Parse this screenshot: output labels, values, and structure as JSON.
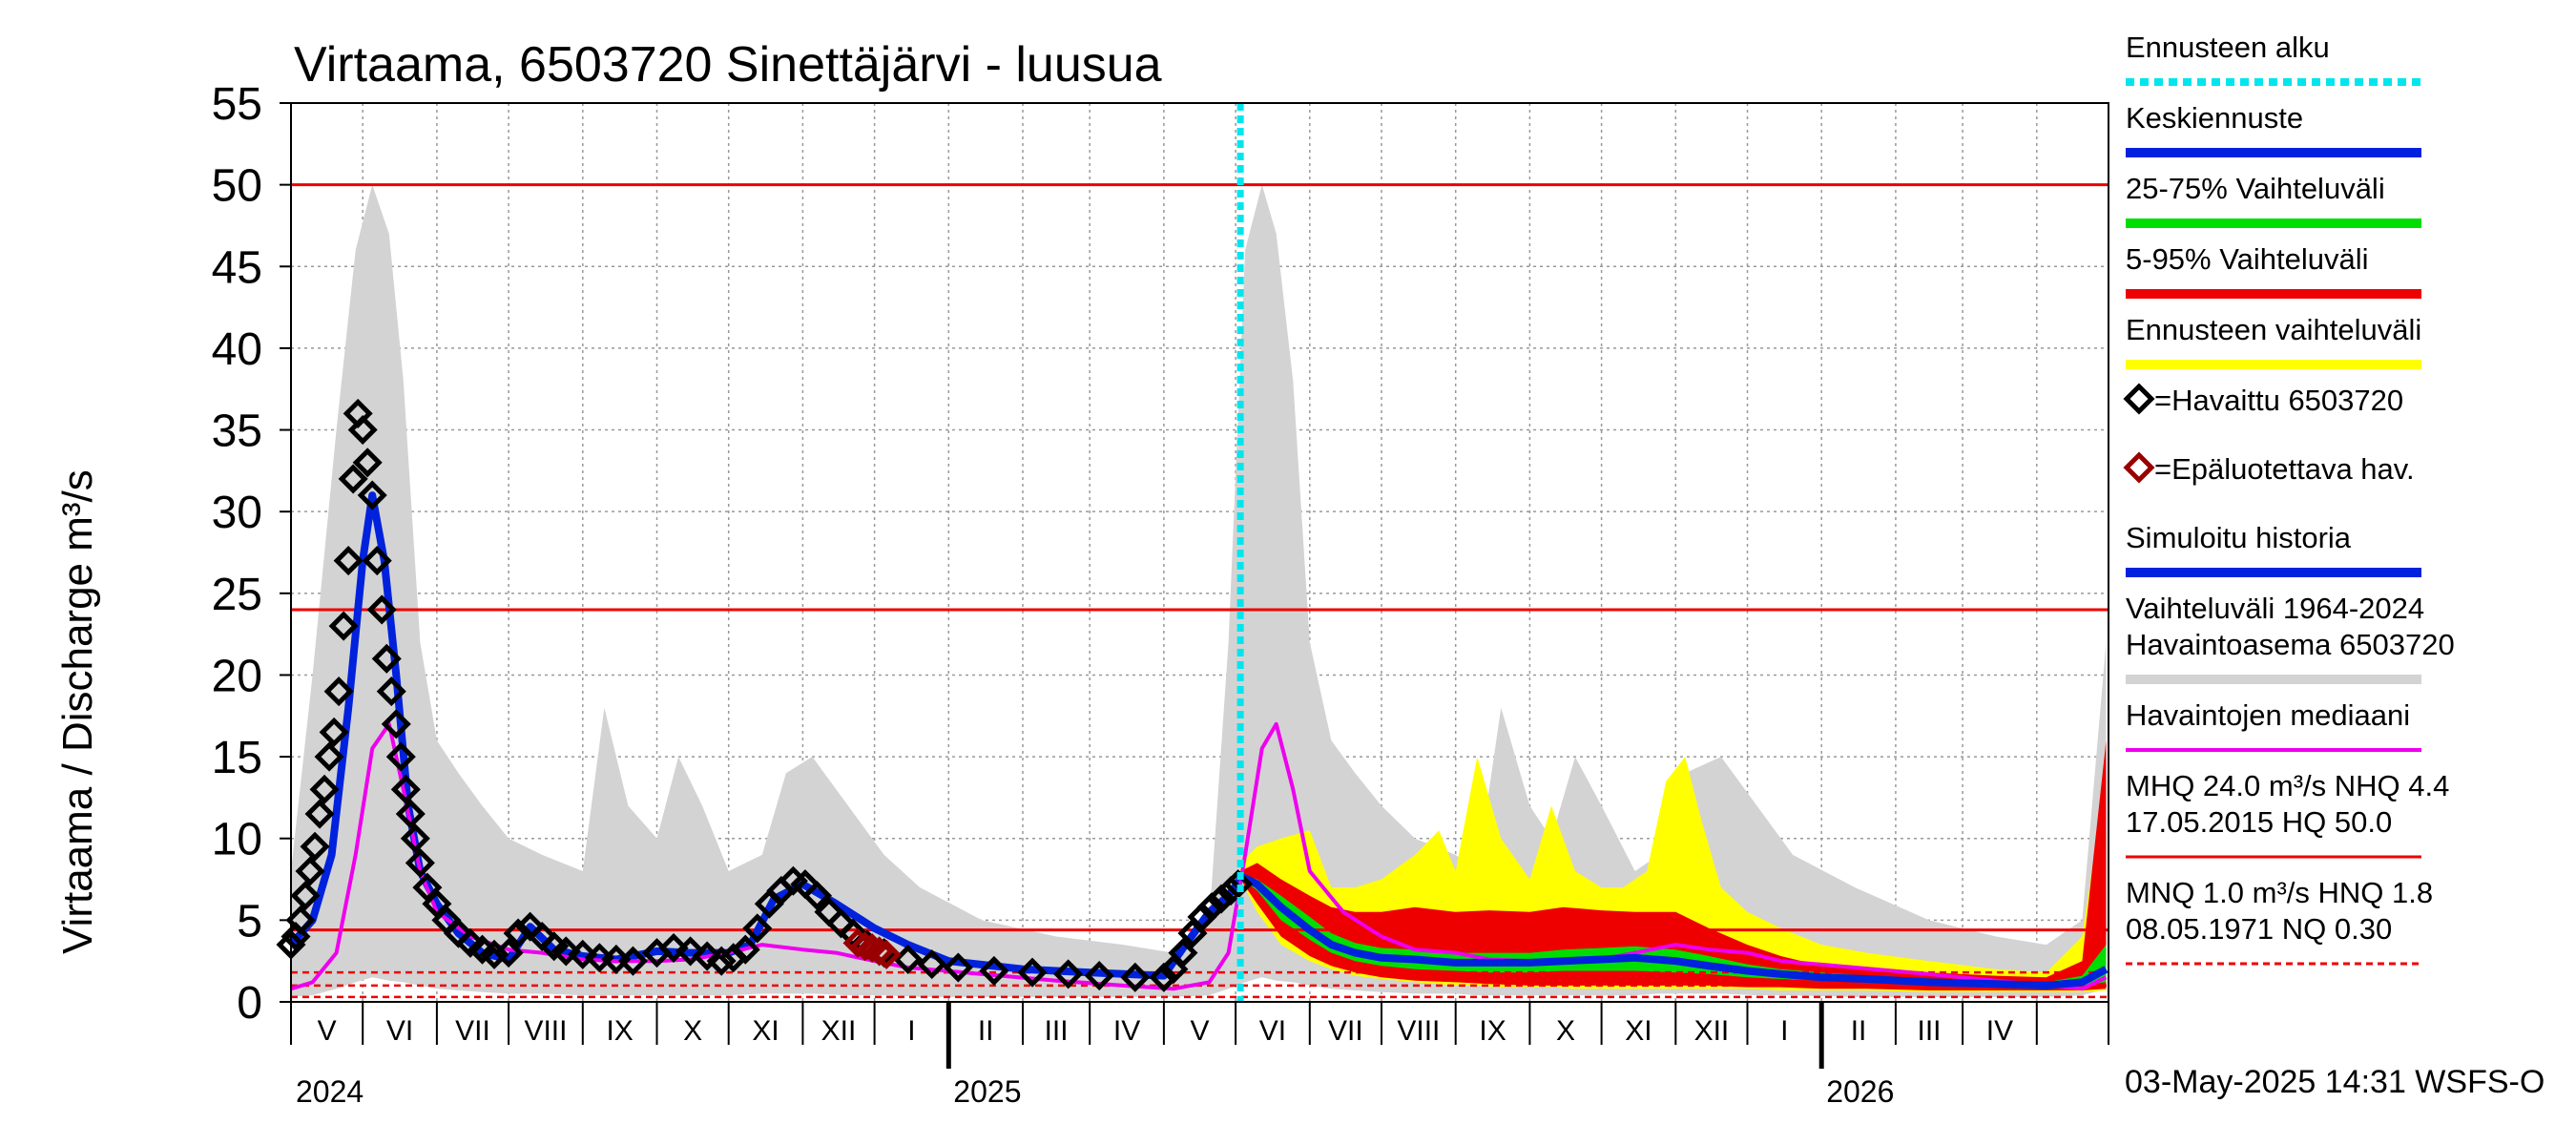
{
  "chart_data": {
    "type": "area",
    "title": "Virtaama, 6503720 Sinettäjärvi - luusua",
    "ylabel": "Virtaama / Discharge    m³/s",
    "ylim": [
      0,
      55
    ],
    "yticks": [
      0,
      5,
      10,
      15,
      20,
      25,
      30,
      35,
      40,
      45,
      50,
      55
    ],
    "xlim": [
      "2024-04-01",
      "2026-05-01"
    ],
    "month_labels": [
      "V",
      "VI",
      "VII",
      "VIII",
      "IX",
      "X",
      "XI",
      "XII",
      "I",
      "II",
      "III",
      "IV",
      "V",
      "VI",
      "VII",
      "VIII",
      "IX",
      "X",
      "XI",
      "XII",
      "I",
      "II",
      "III",
      "IV"
    ],
    "year_labels": [
      {
        "date": "2024-04-01",
        "label": "2024"
      },
      {
        "date": "2025-01-01",
        "label": "2025"
      },
      {
        "date": "2026-01-01",
        "label": "2026"
      }
    ],
    "forecast_start": "2025-05-03",
    "reference_lines": [
      {
        "name": "HQ",
        "value": 50.0,
        "style": "solid"
      },
      {
        "name": "MHQ",
        "value": 24.0,
        "style": "solid"
      },
      {
        "name": "NHQ",
        "value": 4.4,
        "style": "solid"
      },
      {
        "name": "HNQ",
        "value": 1.8,
        "style": "dashed"
      },
      {
        "name": "MNQ",
        "value": 1.0,
        "style": "dashed"
      },
      {
        "name": "NQ",
        "value": 0.3,
        "style": "dashed"
      }
    ],
    "legend": {
      "placement": "right",
      "items": [
        {
          "label": "Ennusteen alku",
          "color": "#00e5ee",
          "kind": "dotted-line"
        },
        {
          "label": "Keskiennuste",
          "color": "#0022dd",
          "kind": "line"
        },
        {
          "label": "25-75% Vaihteluväli",
          "color": "#00dd00",
          "kind": "line"
        },
        {
          "label": "5-95% Vaihteluväli",
          "color": "#ee0000",
          "kind": "line"
        },
        {
          "label": "Ennusteen vaihteluväli",
          "color": "#ffff00",
          "kind": "line"
        },
        {
          "label": "=Havaittu 6503720",
          "color": "#000000",
          "kind": "diamond"
        },
        {
          "label": "=Epäluotettava hav.",
          "color": "#990000",
          "kind": "diamond"
        },
        {
          "label": "Simuloitu historia",
          "color": "#0022dd",
          "kind": "line"
        },
        {
          "label": "Vaihteluväli 1964-2024\n Havaintoasema 6503720",
          "color": "#d3d3d3",
          "kind": "line"
        },
        {
          "label": "Havaintojen mediaani",
          "color": "#ee00ee",
          "kind": "line"
        },
        {
          "label": "MHQ 24.0 m³/s NHQ  4.4\n17.05.2015 HQ 50.0",
          "color": "#ee0000",
          "kind": "line"
        },
        {
          "label": "MNQ  1.0 m³/s HNQ  1.8\n08.05.1971 NQ 0.30",
          "color": "#ee0000",
          "kind": "dashed"
        }
      ]
    },
    "footer": "03-May-2025 14:31 WSFS-O",
    "series": [
      {
        "name": "Vaihteluväli 1964-2024 Havaintoasema 6503720",
        "kind": "band",
        "color": "#d3d3d3",
        "x": [
          "2024-04-01",
          "2024-04-10",
          "2024-04-20",
          "2024-04-28",
          "2024-05-05",
          "2024-05-12",
          "2024-05-18",
          "2024-05-25",
          "2024-06-01",
          "2024-06-10",
          "2024-06-20",
          "2024-07-01",
          "2024-07-15",
          "2024-08-01",
          "2024-08-10",
          "2024-08-20",
          "2024-09-01",
          "2024-09-10",
          "2024-09-20",
          "2024-10-01",
          "2024-10-15",
          "2024-10-25",
          "2024-11-05",
          "2024-11-20",
          "2024-12-05",
          "2024-12-20",
          "2025-01-15",
          "2025-02-15",
          "2025-03-15",
          "2025-04-05",
          "2025-04-20",
          "2025-04-28",
          "2025-05-05",
          "2025-05-12",
          "2025-05-18",
          "2025-05-25",
          "2025-06-01",
          "2025-06-10",
          "2025-06-20",
          "2025-07-01",
          "2025-07-15",
          "2025-08-01",
          "2025-08-10",
          "2025-08-20",
          "2025-09-01",
          "2025-09-10",
          "2025-09-20",
          "2025-10-01",
          "2025-10-15",
          "2025-10-25",
          "2025-11-05",
          "2025-11-20",
          "2025-12-05",
          "2025-12-20",
          "2026-01-15",
          "2026-02-15",
          "2026-03-15",
          "2026-04-05",
          "2026-04-20",
          "2026-04-30"
        ],
        "low": [
          0.3,
          0.4,
          0.8,
          1.2,
          1.5,
          1.3,
          1.2,
          1.0,
          0.8,
          0.7,
          0.6,
          0.5,
          0.5,
          0.4,
          0.4,
          0.4,
          0.4,
          0.4,
          0.4,
          0.4,
          0.5,
          0.5,
          0.5,
          0.4,
          0.4,
          0.3,
          0.3,
          0.3,
          0.3,
          0.3,
          0.4,
          0.8,
          1.2,
          1.5,
          1.3,
          1.2,
          1.0,
          0.8,
          0.7,
          0.6,
          0.5,
          0.5,
          0.4,
          0.4,
          0.4,
          0.4,
          0.4,
          0.4,
          0.4,
          0.5,
          0.5,
          0.5,
          0.4,
          0.4,
          0.3,
          0.3,
          0.3,
          0.3,
          0.4,
          0.8
        ],
        "high": [
          8,
          20,
          35,
          46,
          50,
          47,
          38,
          22,
          16,
          14,
          12,
          10,
          9,
          8,
          18,
          12,
          10,
          15,
          12,
          8,
          9,
          14,
          15,
          12,
          9,
          7,
          5,
          4,
          3.5,
          3,
          5,
          22,
          46,
          50,
          47,
          38,
          22,
          16,
          14,
          12,
          10,
          9,
          8,
          18,
          12,
          10,
          15,
          12,
          8,
          9,
          14,
          15,
          12,
          9,
          7,
          5,
          4,
          3.5,
          5,
          22
        ]
      },
      {
        "name": "Ennusteen vaihteluväli",
        "kind": "band",
        "color": "#ffff00",
        "x": [
          "2025-05-03",
          "2025-05-10",
          "2025-05-20",
          "2025-06-01",
          "2025-06-10",
          "2025-06-20",
          "2025-07-01",
          "2025-07-15",
          "2025-07-25",
          "2025-08-01",
          "2025-08-10",
          "2025-08-20",
          "2025-09-01",
          "2025-09-10",
          "2025-09-20",
          "2025-10-01",
          "2025-10-10",
          "2025-10-20",
          "2025-10-28",
          "2025-11-05",
          "2025-11-12",
          "2025-11-20",
          "2025-12-01",
          "2025-12-15",
          "2026-01-01",
          "2026-01-20",
          "2026-02-15",
          "2026-03-15",
          "2026-04-05",
          "2026-04-20",
          "2026-04-30"
        ],
        "low": [
          7.5,
          5.5,
          3.5,
          2.5,
          2.0,
          1.6,
          1.4,
          1.2,
          1.1,
          1.0,
          1.0,
          0.9,
          0.9,
          0.9,
          0.8,
          0.8,
          0.8,
          0.8,
          0.8,
          0.8,
          0.8,
          0.8,
          0.8,
          0.7,
          0.7,
          0.7,
          0.6,
          0.6,
          0.6,
          0.6,
          0.7
        ],
        "high": [
          8.5,
          9.5,
          10,
          10.5,
          7,
          7,
          7.5,
          9,
          10.5,
          8,
          15,
          10,
          7.5,
          12,
          8,
          7,
          7,
          8,
          13.5,
          15,
          11,
          7,
          5.5,
          4.5,
          3.5,
          3.0,
          2.5,
          2.0,
          1.8,
          4.0,
          14
        ]
      },
      {
        "name": "5-95% Vaihteluväli",
        "kind": "band",
        "color": "#ee0000",
        "x": [
          "2025-05-03",
          "2025-05-10",
          "2025-05-20",
          "2025-06-01",
          "2025-06-10",
          "2025-06-20",
          "2025-07-01",
          "2025-07-15",
          "2025-08-01",
          "2025-08-15",
          "2025-09-01",
          "2025-09-15",
          "2025-10-01",
          "2025-10-15",
          "2025-11-01",
          "2025-11-15",
          "2025-12-01",
          "2025-12-15",
          "2026-01-01",
          "2026-01-20",
          "2026-02-15",
          "2026-03-15",
          "2026-04-05",
          "2026-04-20",
          "2026-04-30"
        ],
        "low": [
          7.5,
          6.0,
          4.0,
          2.8,
          2.2,
          1.8,
          1.5,
          1.3,
          1.2,
          1.1,
          1.0,
          1.0,
          1.0,
          1.0,
          1.0,
          1.0,
          0.9,
          0.9,
          0.8,
          0.8,
          0.7,
          0.7,
          0.7,
          0.7,
          0.8
        ],
        "high": [
          8.0,
          8.5,
          7.5,
          6.5,
          5.8,
          5.5,
          5.5,
          5.8,
          5.5,
          5.6,
          5.5,
          5.8,
          5.6,
          5.5,
          5.5,
          4.5,
          3.5,
          2.8,
          2.2,
          2.0,
          1.8,
          1.6,
          1.5,
          2.5,
          16
        ]
      },
      {
        "name": "25-75% Vaihteluväli",
        "kind": "band",
        "color": "#00dd00",
        "x": [
          "2025-05-03",
          "2025-05-10",
          "2025-05-20",
          "2025-06-01",
          "2025-06-10",
          "2025-06-20",
          "2025-07-01",
          "2025-07-15",
          "2025-08-01",
          "2025-08-15",
          "2025-09-01",
          "2025-09-15",
          "2025-10-01",
          "2025-10-15",
          "2025-11-01",
          "2025-11-15",
          "2025-12-01",
          "2025-12-15",
          "2026-01-01",
          "2026-01-20",
          "2026-02-15",
          "2026-03-15",
          "2026-04-05",
          "2026-04-20",
          "2026-04-30"
        ],
        "low": [
          7.6,
          6.8,
          5.0,
          3.8,
          3.0,
          2.5,
          2.2,
          2.0,
          1.9,
          1.8,
          1.8,
          1.9,
          1.9,
          1.9,
          1.8,
          1.7,
          1.5,
          1.4,
          1.3,
          1.2,
          1.1,
          1.0,
          0.9,
          1.0,
          1.2
        ],
        "high": [
          7.8,
          7.5,
          6.5,
          5.2,
          4.2,
          3.6,
          3.3,
          3.2,
          3.0,
          3.0,
          3.0,
          3.2,
          3.3,
          3.4,
          3.2,
          2.8,
          2.3,
          2.0,
          1.8,
          1.6,
          1.4,
          1.3,
          1.2,
          1.6,
          3.5
        ]
      },
      {
        "name": "Havaintojen mediaani",
        "kind": "line",
        "color": "#ee00ee",
        "x": [
          "2024-04-01",
          "2024-04-10",
          "2024-04-20",
          "2024-04-28",
          "2024-05-05",
          "2024-05-12",
          "2024-05-18",
          "2024-05-25",
          "2024-06-01",
          "2024-06-15",
          "2024-07-01",
          "2024-07-15",
          "2024-08-01",
          "2024-08-15",
          "2024-09-01",
          "2024-09-15",
          "2024-10-01",
          "2024-10-15",
          "2024-11-01",
          "2024-11-15",
          "2024-12-01",
          "2024-12-15",
          "2025-01-15",
          "2025-02-15",
          "2025-03-15",
          "2025-04-05",
          "2025-04-20",
          "2025-04-28",
          "2025-05-05",
          "2025-05-12",
          "2025-05-18",
          "2025-05-25",
          "2025-06-01",
          "2025-06-15",
          "2025-07-01",
          "2025-07-15",
          "2025-08-01",
          "2025-08-15",
          "2025-09-01",
          "2025-09-15",
          "2025-10-01",
          "2025-10-15",
          "2025-11-01",
          "2025-11-15",
          "2025-12-01",
          "2025-12-15",
          "2026-01-15",
          "2026-02-15",
          "2026-03-15",
          "2026-04-05",
          "2026-04-20",
          "2026-04-30"
        ],
        "y": [
          0.8,
          1.2,
          3.0,
          9.0,
          15.5,
          17.0,
          13.0,
          8.0,
          5.5,
          4.0,
          3.2,
          3.0,
          2.6,
          2.5,
          2.5,
          2.6,
          3.0,
          3.5,
          3.2,
          3.0,
          2.5,
          2.1,
          1.7,
          1.3,
          1.0,
          0.8,
          1.2,
          3.0,
          9.0,
          15.5,
          17.0,
          13.0,
          8.0,
          5.5,
          4.0,
          3.2,
          3.0,
          2.6,
          2.5,
          2.5,
          2.6,
          3.0,
          3.5,
          3.2,
          3.0,
          2.5,
          2.1,
          1.7,
          1.3,
          1.0,
          0.8,
          1.5
        ]
      },
      {
        "name": "Simuloitu historia",
        "kind": "line",
        "color": "#0022dd",
        "x": [
          "2024-04-01",
          "2024-04-10",
          "2024-04-18",
          "2024-04-25",
          "2024-05-01",
          "2024-05-05",
          "2024-05-10",
          "2024-05-15",
          "2024-05-20",
          "2024-05-25",
          "2024-06-01",
          "2024-06-10",
          "2024-06-20",
          "2024-07-01",
          "2024-07-10",
          "2024-07-20",
          "2024-08-01",
          "2024-08-15",
          "2024-09-01",
          "2024-09-15",
          "2024-10-01",
          "2024-10-10",
          "2024-10-20",
          "2024-11-01",
          "2024-11-15",
          "2024-12-01",
          "2024-12-15",
          "2025-01-01",
          "2025-02-01",
          "2025-03-01",
          "2025-04-01",
          "2025-04-10",
          "2025-04-20",
          "2025-04-28",
          "2025-05-03"
        ],
        "y": [
          3.5,
          5.0,
          9.0,
          18.0,
          27.0,
          31.0,
          27.0,
          20.0,
          12.0,
          8.0,
          6.0,
          4.2,
          3.0,
          2.6,
          4.6,
          3.2,
          2.8,
          2.6,
          3.1,
          3.0,
          3.0,
          3.5,
          6.3,
          7.2,
          6.0,
          4.5,
          3.5,
          2.5,
          2.0,
          1.8,
          1.6,
          3.5,
          5.5,
          6.5,
          7.5
        ]
      },
      {
        "name": "Keskiennuste",
        "kind": "line",
        "color": "#0022dd",
        "x": [
          "2025-05-03",
          "2025-05-10",
          "2025-05-20",
          "2025-06-01",
          "2025-06-10",
          "2025-06-20",
          "2025-07-01",
          "2025-07-15",
          "2025-08-01",
          "2025-08-15",
          "2025-09-01",
          "2025-09-15",
          "2025-10-01",
          "2025-10-15",
          "2025-11-01",
          "2025-11-15",
          "2025-12-01",
          "2025-12-15",
          "2026-01-01",
          "2026-01-20",
          "2026-02-15",
          "2026-03-15",
          "2026-04-05",
          "2026-04-20",
          "2026-04-30"
        ],
        "y": [
          7.7,
          7.2,
          5.8,
          4.4,
          3.5,
          3.0,
          2.7,
          2.6,
          2.4,
          2.4,
          2.4,
          2.5,
          2.6,
          2.7,
          2.5,
          2.2,
          1.9,
          1.7,
          1.5,
          1.4,
          1.2,
          1.1,
          1.0,
          1.2,
          2.0
        ]
      },
      {
        "name": "=Havaittu 6503720",
        "kind": "markers",
        "color": "#000000",
        "x": [
          "2024-04-01",
          "2024-04-03",
          "2024-04-05",
          "2024-04-07",
          "2024-04-09",
          "2024-04-11",
          "2024-04-13",
          "2024-04-15",
          "2024-04-17",
          "2024-04-19",
          "2024-04-21",
          "2024-04-23",
          "2024-04-25",
          "2024-04-27",
          "2024-04-29",
          "2024-05-01",
          "2024-05-03",
          "2024-05-05",
          "2024-05-07",
          "2024-05-09",
          "2024-05-11",
          "2024-05-13",
          "2024-05-15",
          "2024-05-17",
          "2024-05-19",
          "2024-05-21",
          "2024-05-23",
          "2024-05-25",
          "2024-05-28",
          "2024-06-01",
          "2024-06-05",
          "2024-06-10",
          "2024-06-15",
          "2024-06-20",
          "2024-06-25",
          "2024-07-01",
          "2024-07-05",
          "2024-07-10",
          "2024-07-15",
          "2024-07-20",
          "2024-07-25",
          "2024-08-01",
          "2024-08-08",
          "2024-08-15",
          "2024-08-22",
          "2024-09-01",
          "2024-09-08",
          "2024-09-15",
          "2024-09-22",
          "2024-09-28",
          "2024-10-03",
          "2024-10-08",
          "2024-10-13",
          "2024-10-18",
          "2024-10-23",
          "2024-10-28",
          "2024-11-02",
          "2024-11-07",
          "2024-11-12",
          "2024-11-17",
          "2024-11-22",
          "2024-11-28",
          "2024-12-05",
          "2024-12-15",
          "2024-12-25",
          "2025-01-05",
          "2025-01-20",
          "2025-02-05",
          "2025-02-20",
          "2025-03-05",
          "2025-03-20",
          "2025-04-01",
          "2025-04-05",
          "2025-04-09",
          "2025-04-13",
          "2025-04-17",
          "2025-04-21",
          "2025-04-25",
          "2025-04-29",
          "2025-05-02"
        ],
        "y": [
          3.5,
          4.0,
          5.0,
          6.5,
          8.0,
          9.5,
          11.5,
          13.0,
          15.0,
          16.5,
          19.0,
          23.0,
          27.0,
          32.0,
          36.0,
          35.0,
          33.0,
          31.0,
          27.0,
          24.0,
          21.0,
          19.0,
          17.0,
          15.0,
          13.0,
          11.5,
          10.0,
          8.5,
          7.0,
          6.0,
          5.0,
          4.2,
          3.6,
          3.2,
          2.9,
          3.0,
          4.2,
          4.6,
          4.0,
          3.4,
          3.1,
          2.9,
          2.7,
          2.6,
          2.5,
          3.0,
          3.3,
          3.1,
          2.8,
          2.5,
          2.7,
          3.2,
          4.5,
          6.0,
          6.8,
          7.4,
          7.2,
          6.5,
          5.5,
          4.8,
          4.2,
          3.5,
          3.0,
          2.6,
          2.3,
          2.1,
          1.9,
          1.8,
          1.7,
          1.6,
          1.5,
          1.5,
          2.0,
          3.0,
          4.2,
          5.2,
          5.8,
          6.3,
          6.8,
          7.2
        ]
      },
      {
        "name": "=Epäluotettava hav.",
        "kind": "markers",
        "color": "#990000",
        "x": [
          "2024-11-24",
          "2024-11-27",
          "2024-11-30",
          "2024-12-03",
          "2024-12-06"
        ],
        "y": [
          3.6,
          3.4,
          3.3,
          3.1,
          2.9
        ]
      }
    ]
  }
}
